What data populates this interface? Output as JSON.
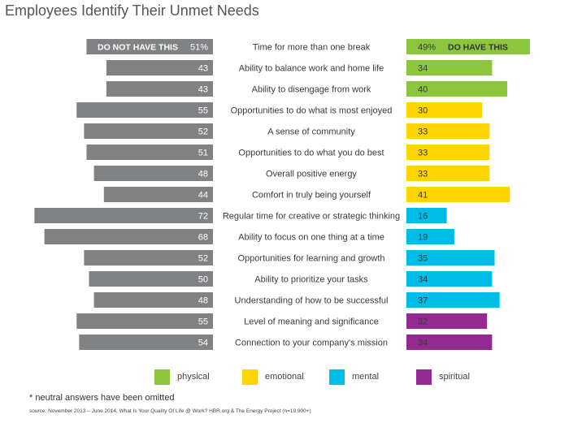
{
  "title": "Employees Identify Their Unmet Needs",
  "colors": {
    "left_bar": "#818284",
    "physical": "#8cc63e",
    "emotional": "#ffd500",
    "mental": "#00bde8",
    "spiritual": "#932a92",
    "text": "#3a3a3a"
  },
  "chart_data": {
    "type": "bar",
    "left_header": "DO NOT HAVE THIS",
    "right_header": "DO HAVE THIS",
    "categories": [
      "Time for more than one break",
      "Ability to balance work and home life",
      "Ability to disengage from work",
      "Opportunities to do what is most enjoyed",
      "A sense of community",
      "Opportunities to do what you do best",
      "Overall positive energy",
      "Comfort in truly being yourself",
      "Regular time for creative or strategic thinking",
      "Ability to focus on one thing at a time",
      "Opportunities for learning and growth",
      "Ability to prioritize your tasks",
      "Understanding of how to be successful",
      "Level of meaning and significance",
      "Connection to your company's mission"
    ],
    "left_labels": [
      "51%",
      "43",
      "43",
      "55",
      "52",
      "51",
      "48",
      "44",
      "72",
      "68",
      "52",
      "50",
      "48",
      "55",
      "54"
    ],
    "right_labels": [
      "49%",
      "34",
      "40",
      "30",
      "33",
      "33",
      "33",
      "41",
      "16",
      "19",
      "35",
      "34",
      "37",
      "32",
      "34"
    ],
    "series": [
      {
        "name": "DO NOT HAVE THIS",
        "values": [
          51,
          43,
          43,
          55,
          52,
          51,
          48,
          44,
          72,
          68,
          52,
          50,
          48,
          55,
          54
        ]
      },
      {
        "name": "DO HAVE THIS",
        "values": [
          49,
          34,
          40,
          30,
          33,
          33,
          33,
          41,
          16,
          19,
          35,
          34,
          37,
          32,
          34
        ]
      }
    ],
    "right_groups": [
      "physical",
      "physical",
      "physical",
      "emotional",
      "emotional",
      "emotional",
      "emotional",
      "emotional",
      "mental",
      "mental",
      "mental",
      "mental",
      "mental",
      "spiritual",
      "spiritual"
    ]
  },
  "legend": [
    {
      "label": "physical",
      "color": "#8cc63e"
    },
    {
      "label": "emotional",
      "color": "#ffd500"
    },
    {
      "label": "mental",
      "color": "#00bde8"
    },
    {
      "label": "spiritual",
      "color": "#932a92"
    }
  ],
  "footnote": "* neutral answers have been omitted",
  "source": "source: November 2013 – June  2014, What Is Your Quality Of Life @ Work? HBR.org & The Energy Project (n=19,900+)"
}
